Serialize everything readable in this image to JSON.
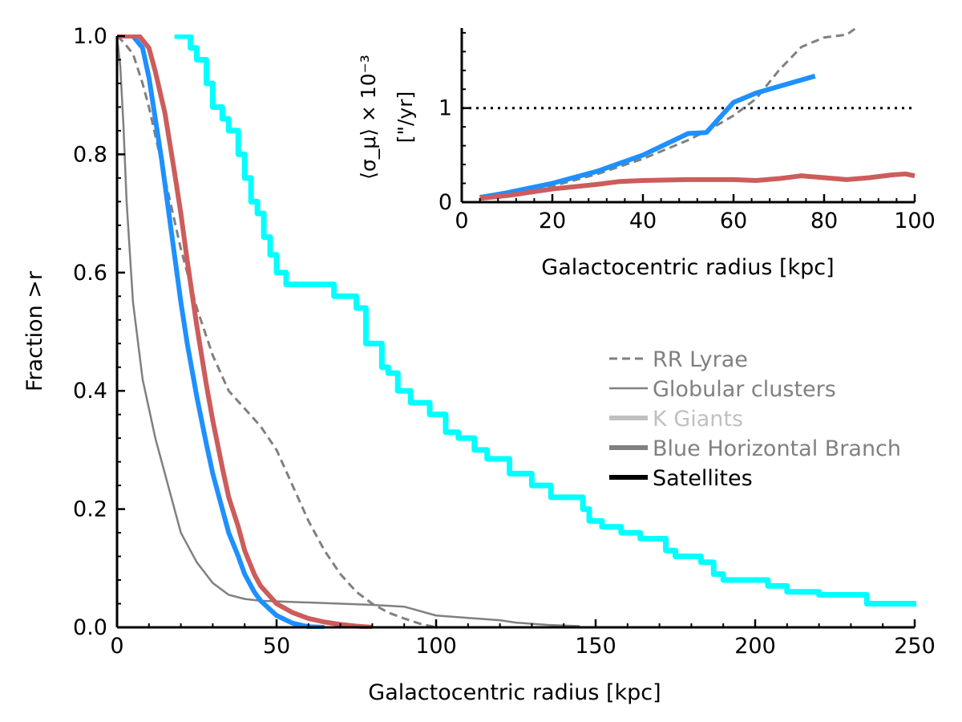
{
  "chart_data": [
    {
      "type": "line",
      "role": "main",
      "xlabel": "Galactocentric radius [kpc]",
      "ylabel": "Fraction >r",
      "xlim": [
        0,
        250
      ],
      "ylim": [
        0,
        1
      ],
      "xticks": [
        0,
        50,
        100,
        150,
        200,
        250
      ],
      "yticks": [
        0.0,
        0.2,
        0.4,
        0.6,
        0.8,
        1.0
      ],
      "xtick_labels": [
        "0",
        "50",
        "100",
        "150",
        "200",
        "250"
      ],
      "ytick_labels": [
        "0.0",
        "0.2",
        "0.4",
        "0.6",
        "0.8",
        "1.0"
      ],
      "grid": false,
      "legend_position": "right",
      "legend": [
        {
          "label": "RR Lyrae",
          "style": "dashed",
          "color": "#808080"
        },
        {
          "label": "Globular clusters",
          "style": "thin",
          "color": "#808080"
        },
        {
          "label": "K Giants",
          "style": "thick",
          "color": "#c0c0c0"
        },
        {
          "label": "Blue Horizontal Branch",
          "style": "thick",
          "color": "#808080"
        },
        {
          "label": "Satellites",
          "style": "thick",
          "color": "#000000"
        }
      ],
      "series": [
        {
          "color": "#808080",
          "style": "dashed",
          "x": [
            0,
            2,
            5,
            8,
            10,
            15,
            20,
            25,
            30,
            35,
            40,
            45,
            50,
            55,
            60,
            65,
            70,
            75,
            80,
            85,
            90,
            95,
            100
          ],
          "y": [
            1.0,
            0.99,
            0.97,
            0.92,
            0.88,
            0.76,
            0.64,
            0.54,
            0.46,
            0.4,
            0.37,
            0.34,
            0.3,
            0.24,
            0.18,
            0.13,
            0.09,
            0.06,
            0.04,
            0.025,
            0.015,
            0.006,
            0.0
          ]
        },
        {
          "color": "#808080",
          "style": "thin",
          "x": [
            0,
            1,
            2,
            3,
            5,
            8,
            10,
            12,
            15,
            18,
            20,
            25,
            30,
            35,
            40,
            45,
            50,
            60,
            70,
            80,
            90,
            100,
            110,
            120,
            125,
            135,
            145
          ],
          "y": [
            1.0,
            0.95,
            0.85,
            0.72,
            0.55,
            0.42,
            0.37,
            0.32,
            0.26,
            0.2,
            0.16,
            0.11,
            0.075,
            0.055,
            0.048,
            0.045,
            0.044,
            0.042,
            0.04,
            0.038,
            0.035,
            0.02,
            0.016,
            0.012,
            0.008,
            0.004,
            0.002
          ]
        },
        {
          "color": "#1e90ff",
          "style": "thick",
          "x": [
            0,
            5,
            8,
            10,
            12,
            14,
            16,
            18,
            20,
            22,
            25,
            28,
            30,
            33,
            35,
            38,
            40,
            43,
            45,
            50,
            55,
            60,
            65
          ],
          "y": [
            1.0,
            1.0,
            0.98,
            0.93,
            0.86,
            0.79,
            0.71,
            0.63,
            0.55,
            0.48,
            0.39,
            0.31,
            0.26,
            0.2,
            0.16,
            0.12,
            0.09,
            0.06,
            0.045,
            0.02,
            0.007,
            0.001,
            0.0
          ]
        },
        {
          "color": "#cd5c5c",
          "style": "thick",
          "x": [
            0,
            5,
            7,
            10,
            12,
            15,
            18,
            20,
            22,
            25,
            28,
            30,
            33,
            35,
            38,
            40,
            43,
            45,
            50,
            55,
            60,
            65,
            70,
            75,
            80
          ],
          "y": [
            1.0,
            1.0,
            1.0,
            0.98,
            0.94,
            0.87,
            0.77,
            0.7,
            0.62,
            0.51,
            0.41,
            0.35,
            0.27,
            0.22,
            0.17,
            0.13,
            0.09,
            0.07,
            0.04,
            0.025,
            0.015,
            0.009,
            0.005,
            0.002,
            0.0
          ]
        },
        {
          "color": "#00ffff",
          "style": "step",
          "x": [
            18,
            23,
            25,
            28,
            30,
            33,
            35,
            38,
            40,
            42,
            44,
            46,
            48,
            50,
            53,
            58,
            68,
            75,
            78,
            83,
            85,
            88,
            92,
            98,
            103,
            107,
            112,
            116,
            123,
            130,
            136,
            146,
            148,
            152,
            158,
            164,
            172,
            175,
            183,
            187,
            190,
            204,
            210,
            220,
            235,
            250
          ],
          "y": [
            1.0,
            0.98,
            0.96,
            0.92,
            0.88,
            0.86,
            0.84,
            0.8,
            0.76,
            0.72,
            0.7,
            0.66,
            0.63,
            0.6,
            0.58,
            0.58,
            0.56,
            0.54,
            0.48,
            0.44,
            0.43,
            0.4,
            0.38,
            0.36,
            0.33,
            0.32,
            0.3,
            0.285,
            0.26,
            0.24,
            0.22,
            0.2,
            0.18,
            0.17,
            0.16,
            0.15,
            0.13,
            0.12,
            0.11,
            0.09,
            0.08,
            0.07,
            0.06,
            0.055,
            0.04,
            0.035
          ]
        }
      ]
    },
    {
      "type": "line",
      "role": "inset",
      "xlabel": "Galactocentric radius [kpc]",
      "ylabel_line1": "⟨σ_μ⟩ × 10⁻³",
      "ylabel_line2": "[\"/yr]",
      "xlim": [
        0,
        100
      ],
      "ylim": [
        0,
        1.85
      ],
      "xticks": [
        0,
        20,
        40,
        60,
        80,
        100
      ],
      "yticks": [
        0,
        1
      ],
      "xtick_labels": [
        "0",
        "20",
        "40",
        "60",
        "80",
        "100"
      ],
      "ytick_labels": [
        "0",
        "1"
      ],
      "reference_line": {
        "y": 1.0,
        "style": "dotted",
        "color": "#000000"
      },
      "series": [
        {
          "color": "#808080",
          "style": "dashed",
          "x": [
            5,
            10,
            20,
            30,
            40,
            50,
            55,
            60,
            65,
            70,
            75,
            80,
            85,
            87
          ],
          "y": [
            0.05,
            0.08,
            0.17,
            0.3,
            0.46,
            0.66,
            0.78,
            0.92,
            1.1,
            1.4,
            1.65,
            1.75,
            1.78,
            1.85
          ]
        },
        {
          "color": "#1e90ff",
          "style": "thick",
          "x": [
            4,
            10,
            20,
            30,
            40,
            50,
            54,
            57,
            60,
            65,
            70,
            78
          ],
          "y": [
            0.05,
            0.1,
            0.2,
            0.33,
            0.5,
            0.73,
            0.74,
            0.9,
            1.06,
            1.16,
            1.23,
            1.34
          ]
        },
        {
          "color": "#cd5c5c",
          "style": "thick",
          "x": [
            4,
            10,
            20,
            30,
            35,
            40,
            50,
            60,
            65,
            70,
            75,
            80,
            85,
            90,
            95,
            98,
            100
          ],
          "y": [
            0.04,
            0.07,
            0.14,
            0.19,
            0.22,
            0.23,
            0.24,
            0.24,
            0.23,
            0.25,
            0.28,
            0.26,
            0.24,
            0.26,
            0.29,
            0.3,
            0.28
          ]
        }
      ]
    }
  ]
}
